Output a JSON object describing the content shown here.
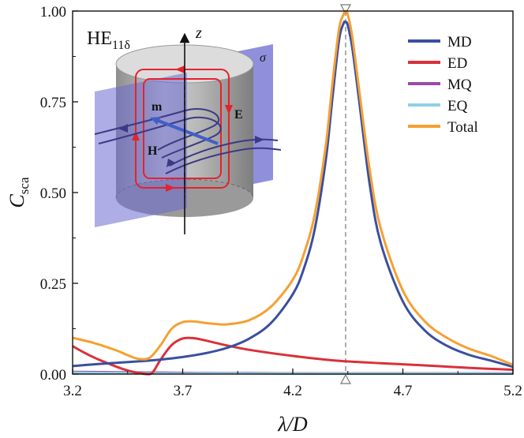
{
  "chart_data": {
    "type": "line",
    "xlabel": "λ/D",
    "ylabel": "C",
    "ylabel_sub": "sca",
    "xlim": [
      3.2,
      5.2
    ],
    "ylim": [
      0,
      1.0
    ],
    "xticks": [
      "3.2",
      "3.7",
      "4.2",
      "4.7",
      "5.2"
    ],
    "yticks": [
      "0.00",
      "0.25",
      "0.50",
      "0.75",
      "1.00"
    ],
    "grid": false,
    "legend": "top-right",
    "resonance_marker_x": 4.44,
    "inset": {
      "mode_label": "HE",
      "mode_sub": "11δ",
      "labels": {
        "z": "z",
        "sigma": "σ",
        "m": "m",
        "E": "E",
        "H": "H"
      }
    },
    "series": [
      {
        "name": "MD",
        "color": "#3a4fa0",
        "x": [
          3.2,
          3.3,
          3.4,
          3.5,
          3.6,
          3.7,
          3.8,
          3.9,
          4.0,
          4.1,
          4.2,
          4.25,
          4.3,
          4.35,
          4.38,
          4.41,
          4.43,
          4.44,
          4.45,
          4.47,
          4.5,
          4.55,
          4.6,
          4.7,
          4.8,
          4.9,
          5.0,
          5.1,
          5.2
        ],
        "y": [
          0.022,
          0.027,
          0.031,
          0.035,
          0.04,
          0.047,
          0.057,
          0.072,
          0.097,
          0.14,
          0.22,
          0.29,
          0.4,
          0.59,
          0.76,
          0.92,
          0.965,
          0.97,
          0.96,
          0.9,
          0.76,
          0.52,
          0.36,
          0.2,
          0.12,
          0.078,
          0.053,
          0.037,
          0.02
        ]
      },
      {
        "name": "ED",
        "color": "#d9303a",
        "x": [
          3.2,
          3.25,
          3.3,
          3.35,
          3.4,
          3.45,
          3.5,
          3.55,
          3.57,
          3.6,
          3.65,
          3.7,
          3.75,
          3.8,
          3.9,
          4.0,
          4.2,
          4.4,
          4.6,
          4.8,
          5.0,
          5.2
        ],
        "y": [
          0.077,
          0.06,
          0.045,
          0.032,
          0.02,
          0.01,
          0.003,
          0.0,
          0.01,
          0.04,
          0.08,
          0.098,
          0.099,
          0.093,
          0.079,
          0.067,
          0.05,
          0.037,
          0.03,
          0.024,
          0.017,
          0.012
        ]
      },
      {
        "name": "MQ",
        "color": "#9b4aa8",
        "x": [
          3.2,
          3.4,
          3.6,
          3.8,
          4.0,
          4.2,
          4.4,
          4.6,
          4.8,
          5.0,
          5.2
        ],
        "y": [
          0.006,
          0.005,
          0.004,
          0.003,
          0.003,
          0.002,
          0.002,
          0.002,
          0.002,
          0.002,
          0.002
        ]
      },
      {
        "name": "EQ",
        "color": "#8fd0e6",
        "x": [
          3.2,
          3.4,
          3.6,
          3.8,
          4.0,
          4.2,
          4.4,
          4.6,
          4.8,
          5.0,
          5.2
        ],
        "y": [
          0.004,
          0.003,
          0.002,
          0.002,
          0.002,
          0.001,
          0.001,
          0.001,
          0.001,
          0.001,
          0.001
        ]
      },
      {
        "name": "Total",
        "color": "#f5a033",
        "x": [
          3.2,
          3.3,
          3.4,
          3.45,
          3.5,
          3.55,
          3.6,
          3.65,
          3.7,
          3.75,
          3.8,
          3.85,
          3.9,
          4.0,
          4.1,
          4.2,
          4.25,
          4.3,
          4.35,
          4.38,
          4.41,
          4.43,
          4.44,
          4.45,
          4.47,
          4.5,
          4.55,
          4.6,
          4.7,
          4.8,
          4.9,
          5.0,
          5.1,
          5.2
        ],
        "y": [
          0.1,
          0.085,
          0.065,
          0.052,
          0.042,
          0.045,
          0.08,
          0.125,
          0.143,
          0.145,
          0.141,
          0.138,
          0.137,
          0.148,
          0.185,
          0.26,
          0.33,
          0.44,
          0.63,
          0.8,
          0.95,
          0.99,
          1.0,
          0.99,
          0.93,
          0.79,
          0.56,
          0.4,
          0.23,
          0.145,
          0.1,
          0.07,
          0.05,
          0.025
        ]
      }
    ]
  }
}
